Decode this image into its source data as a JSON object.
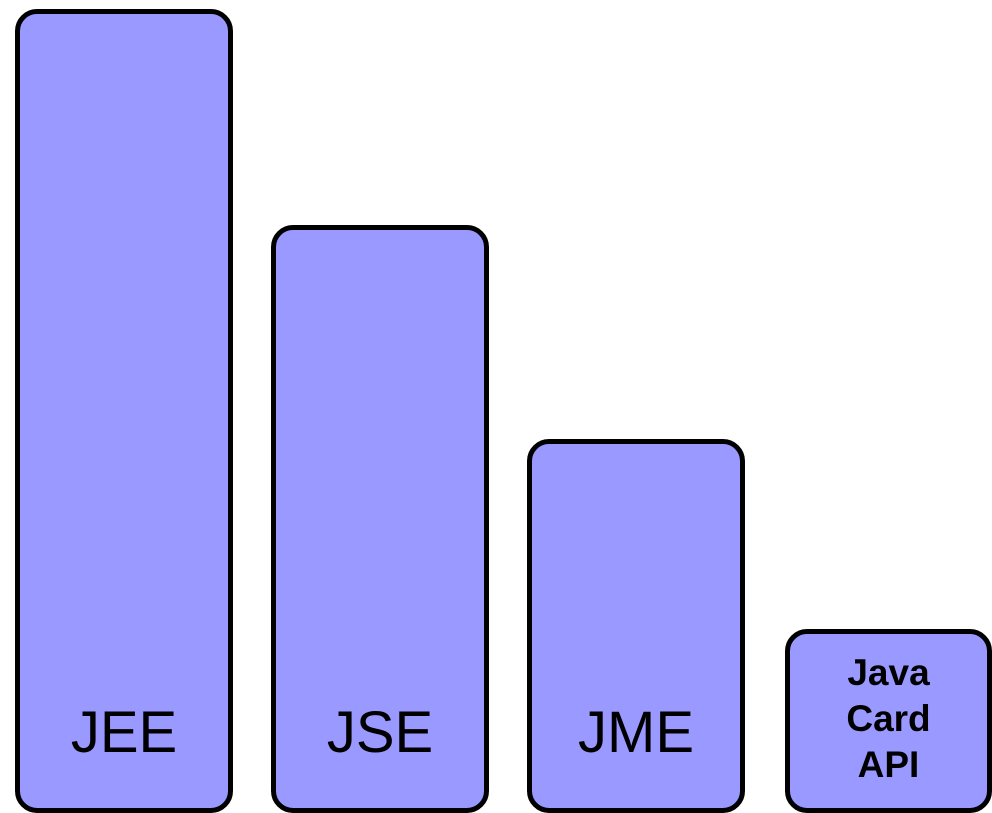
{
  "colors": {
    "block_fill": "#9999ff",
    "block_border": "#000000",
    "text": "#000000"
  },
  "blocks": [
    {
      "label_lines": [
        "JEE"
      ]
    },
    {
      "label_lines": [
        "JSE"
      ]
    },
    {
      "label_lines": [
        "JME"
      ]
    },
    {
      "label_lines": [
        "Java",
        "Card",
        "API"
      ]
    }
  ]
}
